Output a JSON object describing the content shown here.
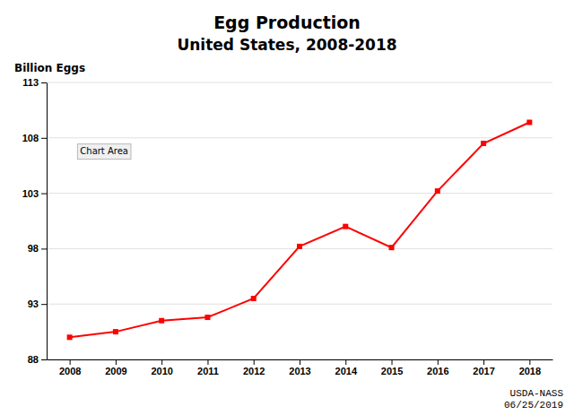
{
  "chart_data": {
    "type": "line",
    "title": "Egg Production",
    "subtitle": "United States, 2008-2018",
    "y_label": "Billion Eggs",
    "x": [
      2008,
      2009,
      2010,
      2011,
      2012,
      2013,
      2014,
      2015,
      2016,
      2017,
      2018
    ],
    "values": [
      90.0,
      90.5,
      91.5,
      91.8,
      93.5,
      98.2,
      100.0,
      98.1,
      103.2,
      107.5,
      109.4
    ],
    "color": "#FF0000",
    "marker": "square",
    "xlim": [
      2007.5,
      2018.5
    ],
    "xticks": [
      2008,
      2009,
      2010,
      2011,
      2012,
      2013,
      2014,
      2015,
      2016,
      2017,
      2018
    ],
    "ylim": [
      88,
      113
    ],
    "yticks": [
      88,
      93,
      98,
      103,
      108,
      113
    ],
    "grid": true,
    "annotations": [
      {
        "text": "Chart Area",
        "x": 2008.15,
        "y": 107.3
      },
      {
        "text": "USDA-NASS\n06/25/2019"
      }
    ]
  }
}
